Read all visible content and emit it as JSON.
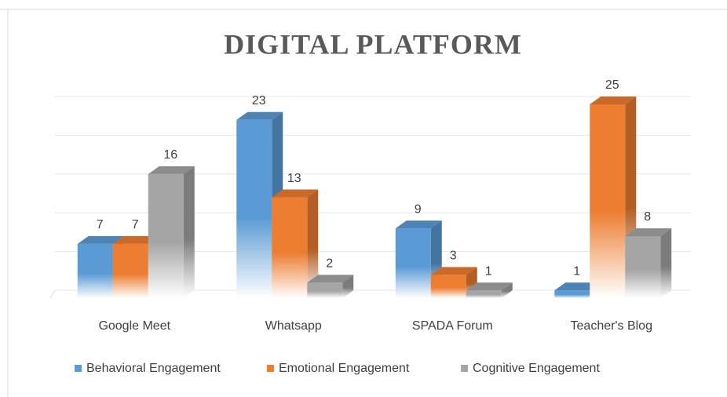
{
  "chart_data": {
    "type": "bar3d",
    "title": "DIGITAL PLATFORM",
    "categories": [
      "Google Meet",
      "Whatsapp",
      "SPADA Forum",
      "Teacher's Blog"
    ],
    "series": [
      {
        "name": "Behavioral Engagement",
        "color": "#5b9bd5",
        "values": [
          7,
          23,
          9,
          1
        ]
      },
      {
        "name": "Emotional Engagement",
        "color": "#ed7d31",
        "values": [
          7,
          13,
          3,
          25
        ]
      },
      {
        "name": "Cognitive Engagement",
        "color": "#a5a5a5",
        "values": [
          16,
          2,
          1,
          8
        ]
      }
    ],
    "ylim": [
      0,
      25
    ],
    "yticks": [
      0,
      5,
      10,
      15,
      20,
      25
    ],
    "grid": true,
    "legend": "bottom"
  }
}
